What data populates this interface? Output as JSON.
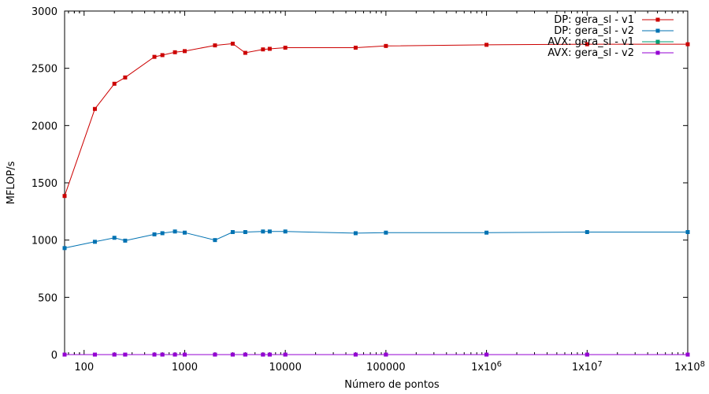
{
  "chart_data": {
    "type": "line",
    "title": "",
    "xlabel": "Número de pontos",
    "ylabel": "MFLOP/s",
    "xscale": "log",
    "xlim": [
      64,
      100000000
    ],
    "ylim": [
      0,
      3000
    ],
    "grid": false,
    "legend_position": "top-right",
    "x_ticks": [
      {
        "value": 100,
        "label": "100"
      },
      {
        "value": 1000,
        "label": "1000"
      },
      {
        "value": 10000,
        "label": "10000"
      },
      {
        "value": 100000,
        "label": "100000"
      },
      {
        "value": 1000000,
        "label": "1x10",
        "exp": "6"
      },
      {
        "value": 10000000,
        "label": "1x10",
        "exp": "7"
      },
      {
        "value": 100000000,
        "label": "1x10",
        "exp": "8"
      }
    ],
    "y_ticks": [
      0,
      500,
      1000,
      1500,
      2000,
      2500,
      3000
    ],
    "x": [
      64,
      128,
      200,
      256,
      500,
      600,
      800,
      1000,
      2000,
      3000,
      4000,
      6000,
      7000,
      10000,
      50000,
      100000,
      1000000,
      10000000,
      100000000
    ],
    "series": [
      {
        "name": "DP: gera_sl - v1",
        "color": "#cc0000",
        "values": [
          1385,
          2145,
          2365,
          2420,
          2600,
          2615,
          2640,
          2650,
          2700,
          2715,
          2635,
          2665,
          2670,
          2680,
          2680,
          2695,
          2705,
          2710,
          2710
        ]
      },
      {
        "name": "DP: gera_sl - v2",
        "color": "#0072b2",
        "values": [
          930,
          985,
          1020,
          995,
          1050,
          1060,
          1075,
          1065,
          1000,
          1070,
          1070,
          1075,
          1075,
          1075,
          1060,
          1065,
          1065,
          1070,
          1070
        ]
      },
      {
        "name": "AVX: gera_sl - v1",
        "color": "#009e73",
        "values": [
          0,
          0,
          0,
          0,
          0,
          0,
          0,
          0,
          0,
          0,
          0,
          0,
          0,
          0,
          0,
          0,
          0,
          0,
          0
        ]
      },
      {
        "name": "AVX: gera_sl - v2",
        "color": "#9400d3",
        "values": [
          0,
          0,
          0,
          0,
          0,
          0,
          0,
          0,
          0,
          0,
          0,
          0,
          0,
          0,
          0,
          0,
          0,
          0,
          0
        ]
      }
    ]
  }
}
